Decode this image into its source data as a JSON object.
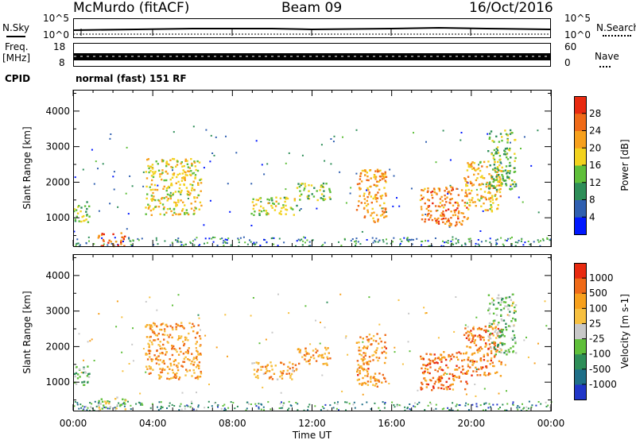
{
  "header": {
    "station": "McMurdo (fitACF)",
    "beam": "Beam 09",
    "date": "16/Oct/2016"
  },
  "sky_panel": {
    "left_label": "N.Sky",
    "right_label": "N.Search",
    "left_tick_top": "10^5",
    "left_tick_bottom": "10^0",
    "right_tick_top": "10^5",
    "right_tick_bottom": "10^0"
  },
  "freq_panel": {
    "left_label_top": "Freq.",
    "left_label_bottom": "[MHz]",
    "right_label": "Nave",
    "left_ticks": [
      "18",
      "8"
    ],
    "right_ticks": [
      "60",
      "0"
    ]
  },
  "cpid": {
    "label": "CPID",
    "value": "normal (fast) 151 RF"
  },
  "chart_data": [
    {
      "type": "heatmap",
      "title": "",
      "xlabel": "",
      "ylabel": "Slant Range [km]",
      "x_ticks": [],
      "y_ticks": [
        "1000",
        "2000",
        "3000",
        "4000"
      ],
      "ylim": [
        200,
        4600
      ],
      "colorbar": {
        "label": "Power [dB]",
        "ticks": [
          "4",
          "8",
          "12",
          "16",
          "20",
          "24",
          "28"
        ],
        "colors": [
          "#0018ff",
          "#2f5fb0",
          "#2e8e58",
          "#5fbf3a",
          "#f2d21e",
          "#f7a01c",
          "#ef6a18",
          "#e82a10"
        ]
      },
      "patches": [
        {
          "t0": 0.0,
          "t1": 0.8,
          "r0": 900,
          "r1": 1500,
          "level": 0.45
        },
        {
          "t0": 1.2,
          "t1": 2.6,
          "r0": 220,
          "r1": 600,
          "level": 0.85
        },
        {
          "t0": 3.6,
          "t1": 6.4,
          "r0": 1100,
          "r1": 2700,
          "level": 0.6
        },
        {
          "t0": 8.9,
          "t1": 11.2,
          "r0": 1100,
          "r1": 1600,
          "level": 0.5
        },
        {
          "t0": 11.2,
          "t1": 12.9,
          "r0": 1500,
          "r1": 2000,
          "level": 0.45
        },
        {
          "t0": 14.2,
          "t1": 15.7,
          "r0": 900,
          "r1": 2400,
          "level": 0.75
        },
        {
          "t0": 17.4,
          "t1": 19.8,
          "r0": 800,
          "r1": 1900,
          "level": 0.8
        },
        {
          "t0": 19.6,
          "t1": 21.5,
          "r0": 1200,
          "r1": 2600,
          "level": 0.65
        },
        {
          "t0": 20.8,
          "t1": 22.2,
          "r0": 1800,
          "r1": 3500,
          "level": 0.4
        }
      ]
    },
    {
      "type": "heatmap",
      "title": "",
      "xlabel": "Time UT",
      "ylabel": "Slant Range [km]",
      "x_ticks": [
        "00:00",
        "04:00",
        "08:00",
        "12:00",
        "16:00",
        "20:00",
        "00:00"
      ],
      "y_ticks": [
        "1000",
        "2000",
        "3000",
        "4000"
      ],
      "ylim": [
        200,
        4600
      ],
      "colorbar": {
        "label": "Velocity [m s-1]",
        "ticks": [
          "1000",
          "500",
          "100",
          "25",
          "-25",
          "-100",
          "-500",
          "-1000"
        ],
        "colors": [
          "#2036c8",
          "#1f6f88",
          "#2e8e58",
          "#5fbf3a",
          "#c8c8c8",
          "#f7c040",
          "#f7a01c",
          "#ef6a18",
          "#e82a10"
        ]
      },
      "patches": [
        {
          "t0": 0.0,
          "t1": 0.8,
          "r0": 900,
          "r1": 1500,
          "level": 0.35
        },
        {
          "t0": 1.2,
          "t1": 2.6,
          "r0": 220,
          "r1": 600,
          "level": 0.5
        },
        {
          "t0": 3.6,
          "t1": 6.4,
          "r0": 1100,
          "r1": 2700,
          "level": 0.75
        },
        {
          "t0": 8.9,
          "t1": 11.2,
          "r0": 1100,
          "r1": 1600,
          "level": 0.72
        },
        {
          "t0": 11.2,
          "t1": 12.9,
          "r0": 1500,
          "r1": 2000,
          "level": 0.72
        },
        {
          "t0": 14.2,
          "t1": 15.7,
          "r0": 900,
          "r1": 2400,
          "level": 0.78
        },
        {
          "t0": 17.4,
          "t1": 19.8,
          "r0": 800,
          "r1": 1900,
          "level": 0.85
        },
        {
          "t0": 19.6,
          "t1": 21.5,
          "r0": 1200,
          "r1": 2600,
          "level": 0.82
        },
        {
          "t0": 20.8,
          "t1": 22.2,
          "r0": 1800,
          "r1": 3500,
          "level": 0.4
        }
      ]
    }
  ]
}
